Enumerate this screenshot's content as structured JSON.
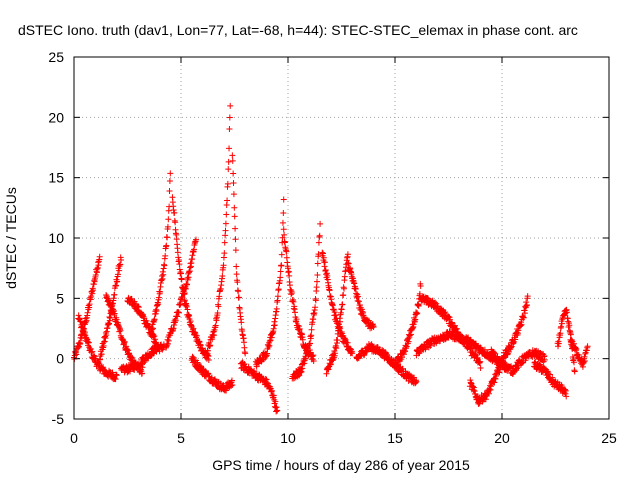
{
  "chart_data": {
    "type": "scatter",
    "title": "dSTEC Iono. truth (dav1, Lon=77, Lat=-68, h=44): STEC-STEC_elemax in phase cont. arc",
    "xlabel": "GPS time / hours of day 286 of year 2015",
    "ylabel": "dSTEC  / TECUs",
    "xlim": [
      0,
      25
    ],
    "ylim": [
      -5,
      25
    ],
    "x_ticks": [
      0,
      5,
      10,
      15,
      20,
      25
    ],
    "y_ticks": [
      -5,
      0,
      5,
      10,
      15,
      20,
      25
    ],
    "x_tick_labels": [
      "0",
      "5",
      "10",
      "15",
      "20",
      "25"
    ],
    "y_tick_labels": [
      "-5",
      "0",
      "5",
      "10",
      "15",
      "20",
      "25"
    ],
    "grid": true,
    "legend": "none",
    "marker": "+",
    "colors": {
      "series": "#ff0000",
      "axes": "#000000",
      "grid": "#a0a0a0"
    },
    "series": [
      {
        "name": "dSTEC",
        "approximate": true,
        "arcs": [
          {
            "x": [
              0.0,
              0.3,
              0.6,
              0.9,
              1.2
            ],
            "y": [
              0.0,
              1.5,
              3.5,
              6.0,
              8.5
            ]
          },
          {
            "x": [
              0.2,
              0.5,
              0.8,
              1.1,
              1.5,
              2.0
            ],
            "y": [
              3.5,
              2.0,
              0.5,
              -0.5,
              -1.2,
              -1.5
            ]
          },
          {
            "x": [
              1.2,
              1.5,
              1.8,
              2.1,
              2.2
            ],
            "y": [
              0.0,
              2.0,
              4.5,
              7.5,
              8.3
            ]
          },
          {
            "x": [
              1.5,
              1.8,
              2.1,
              2.4,
              2.8,
              3.2
            ],
            "y": [
              5.0,
              4.0,
              2.5,
              1.0,
              -0.5,
              -1.0
            ]
          },
          {
            "x": [
              2.2,
              2.6,
              3.0,
              3.4,
              3.8,
              4.2
            ],
            "y": [
              -1.0,
              -0.8,
              -0.5,
              0.2,
              0.8,
              1.0
            ]
          },
          {
            "x": [
              2.5,
              2.8,
              3.1,
              3.5,
              3.9
            ],
            "y": [
              4.8,
              4.6,
              3.8,
              2.5,
              1.2
            ]
          },
          {
            "x": [
              3.6,
              3.9,
              4.2,
              4.4,
              4.5
            ],
            "y": [
              2.0,
              4.5,
              7.5,
              11.0,
              15.2
            ]
          },
          {
            "x": [
              4.6,
              4.9,
              5.2,
              5.5,
              5.9,
              6.3
            ],
            "y": [
              13.5,
              8.0,
              4.5,
              2.5,
              1.0,
              0.0
            ]
          },
          {
            "x": [
              4.3,
              4.8,
              5.3,
              5.7
            ],
            "y": [
              1.0,
              3.5,
              6.5,
              10.0
            ]
          },
          {
            "x": [
              5.5,
              6.0,
              6.5,
              7.0,
              7.4
            ],
            "y": [
              0.0,
              -1.0,
              -1.8,
              -2.5,
              -2.0
            ]
          },
          {
            "x": [
              6.2,
              6.6,
              7.0,
              7.2,
              7.3
            ],
            "y": [
              0.5,
              2.5,
              8.0,
              15.0,
              21.0
            ]
          },
          {
            "x": [
              7.4,
              7.5,
              7.6,
              7.8,
              8.0
            ],
            "y": [
              17.0,
              12.0,
              7.0,
              3.0,
              0.5
            ]
          },
          {
            "x": [
              7.8,
              8.2,
              8.6,
              9.0,
              9.3,
              9.5
            ],
            "y": [
              -0.5,
              -1.0,
              -1.5,
              -2.0,
              -3.0,
              -4.5
            ]
          },
          {
            "x": [
              8.5,
              9.0,
              9.4,
              9.7,
              9.8
            ],
            "y": [
              -0.5,
              0.5,
              3.0,
              8.0,
              13.0
            ]
          },
          {
            "x": [
              9.8,
              10.1,
              10.4,
              10.8,
              11.2
            ],
            "y": [
              10.5,
              6.0,
              3.0,
              1.0,
              0.0
            ]
          },
          {
            "x": [
              10.2,
              10.6,
              11.0,
              11.3,
              11.5
            ],
            "y": [
              -1.5,
              -1.0,
              1.0,
              5.0,
              11.0
            ]
          },
          {
            "x": [
              11.6,
              11.9,
              12.2,
              12.6,
              13.0
            ],
            "y": [
              9.0,
              6.0,
              3.5,
              1.5,
              0.5
            ]
          },
          {
            "x": [
              11.8,
              12.2,
              12.5,
              12.7,
              12.8
            ],
            "y": [
              -1.0,
              0.5,
              4.0,
              7.5,
              8.5
            ]
          },
          {
            "x": [
              12.8,
              13.1,
              13.4,
              13.7,
              14.0
            ],
            "y": [
              8.0,
              6.0,
              4.0,
              3.0,
              2.5
            ]
          },
          {
            "x": [
              13.2,
              13.8,
              14.4,
              15.0,
              15.6,
              16.0
            ],
            "y": [
              0.0,
              1.0,
              0.5,
              -0.5,
              -1.5,
              -2.0
            ]
          },
          {
            "x": [
              15.0,
              15.4,
              15.8,
              16.1,
              16.2
            ],
            "y": [
              -0.5,
              0.5,
              2.5,
              4.5,
              6.3
            ]
          },
          {
            "x": [
              16.2,
              16.8,
              17.4,
              18.0,
              18.6,
              19.0
            ],
            "y": [
              5.0,
              4.5,
              3.5,
              2.0,
              0.5,
              -0.5
            ]
          },
          {
            "x": [
              16.0,
              16.8,
              17.6,
              18.4,
              19.2,
              20.0
            ],
            "y": [
              0.5,
              1.5,
              2.0,
              1.5,
              0.5,
              -0.5
            ]
          },
          {
            "x": [
              18.5,
              18.9,
              19.3,
              19.7,
              20.1
            ],
            "y": [
              -2.0,
              -3.5,
              -3.0,
              -1.5,
              0.0
            ]
          },
          {
            "x": [
              20.0,
              20.4,
              20.8,
              21.0,
              21.2
            ],
            "y": [
              0.0,
              1.0,
              2.5,
              3.5,
              5.0
            ]
          },
          {
            "x": [
              19.5,
              20.0,
              20.5,
              21.0,
              21.5,
              22.0
            ],
            "y": [
              0.5,
              -0.5,
              -1.0,
              0.0,
              0.5,
              0.0
            ]
          },
          {
            "x": [
              21.5,
              22.0,
              22.4,
              22.8,
              23.0
            ],
            "y": [
              -0.5,
              -1.0,
              -2.0,
              -2.5,
              -3.0
            ]
          },
          {
            "x": [
              22.6,
              22.8,
              23.0,
              23.2,
              23.4
            ],
            "y": [
              1.0,
              3.0,
              4.0,
              2.0,
              -1.0
            ]
          },
          {
            "x": [
              23.2,
              23.5,
              23.8,
              24.0
            ],
            "y": [
              1.5,
              0.5,
              -0.5,
              1.0
            ]
          }
        ]
      }
    ]
  }
}
